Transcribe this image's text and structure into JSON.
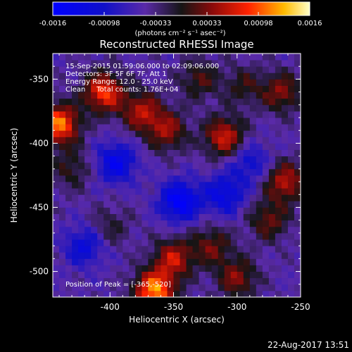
{
  "chart_data": {
    "type": "heatmap",
    "title": "Reconstructed RHESSI Image",
    "xlabel": "Heliocentric X (arcsec)",
    "ylabel": "Heliocentric Y (arcsec)",
    "xlim": [
      -445,
      -250
    ],
    "ylim": [
      -520,
      -330
    ],
    "x_ticks": [
      -400,
      -350,
      -300,
      -250
    ],
    "y_ticks": [
      -350,
      -400,
      -450,
      -500
    ],
    "colorbar": {
      "ticks": [
        "-0.0016",
        "-0.00098",
        "-0.00033",
        "0.00033",
        "0.00098",
        "0.0016"
      ],
      "range": [
        -0.0016,
        0.0016
      ],
      "unit_label": "(photons cm⁻² s⁻¹ asec⁻²)"
    },
    "annotations": [
      "15-Sep-2015 01:59:06.000 to 02:09:06.000",
      "Detectors: 3F 5F 6F 7F, Att 1",
      "Energy Range: 12.0 - 25.0 keV",
      "Clean     Total counts: 1.76E+04"
    ],
    "peak_label": "Position of Peak = [-365,-520]",
    "peak": [
      -365,
      -520
    ],
    "hotspots": [
      {
        "x": -440,
        "y": -385,
        "v": 0.0015
      },
      {
        "x": -405,
        "y": -360,
        "v": 0.0013
      },
      {
        "x": -375,
        "y": -375,
        "v": 0.00095
      },
      {
        "x": -355,
        "y": -390,
        "v": 0.00085
      },
      {
        "x": -330,
        "y": -350,
        "v": 0.0006
      },
      {
        "x": -310,
        "y": -395,
        "v": 0.0011
      },
      {
        "x": -295,
        "y": -355,
        "v": 0.0005
      },
      {
        "x": -265,
        "y": -360,
        "v": 0.0008
      },
      {
        "x": -262,
        "y": -430,
        "v": 0.001
      },
      {
        "x": -275,
        "y": -460,
        "v": 0.0007
      },
      {
        "x": -365,
        "y": -515,
        "v": 0.0016
      },
      {
        "x": -350,
        "y": -490,
        "v": 0.001
      },
      {
        "x": -320,
        "y": -480,
        "v": 0.0007
      },
      {
        "x": -300,
        "y": -505,
        "v": 0.0008
      },
      {
        "x": -430,
        "y": -420,
        "v": 0.0005
      },
      {
        "x": -400,
        "y": -465,
        "v": 0.0004
      }
    ],
    "coldspots": [
      {
        "x": -395,
        "y": -415,
        "v": -0.0009
      },
      {
        "x": -345,
        "y": -445,
        "v": -0.0011
      },
      {
        "x": -310,
        "y": -440,
        "v": -0.0008
      },
      {
        "x": -420,
        "y": -480,
        "v": -0.0007
      },
      {
        "x": -290,
        "y": -415,
        "v": -0.0006
      }
    ]
  },
  "footer": {
    "date": "22-Aug-2017 13:51"
  }
}
